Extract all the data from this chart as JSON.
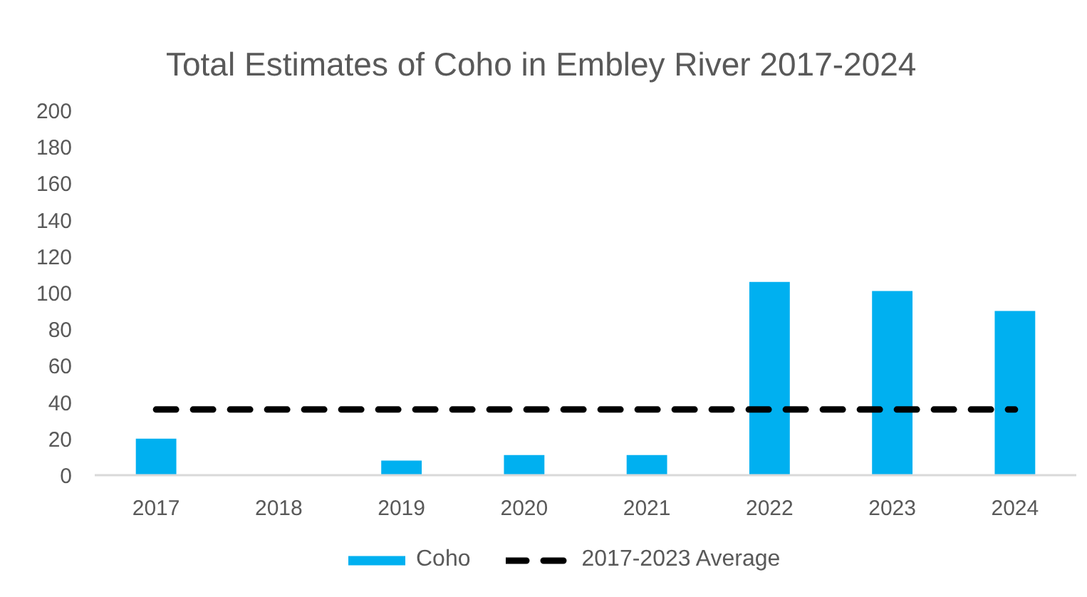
{
  "chart_data": {
    "type": "bar",
    "title": "Total Estimates of Coho in Embley River 2017-2024",
    "categories": [
      "2017",
      "2018",
      "2019",
      "2020",
      "2021",
      "2022",
      "2023",
      "2024"
    ],
    "series": [
      {
        "name": "Coho",
        "color": "#00b0f0",
        "values": [
          20,
          0,
          8,
          11,
          11,
          106,
          101,
          90
        ]
      },
      {
        "name": "2017-2023 Average",
        "type": "line",
        "color": "#000000",
        "line_style": "dashed",
        "values": [
          36,
          36,
          36,
          36,
          36,
          36,
          36,
          36
        ]
      }
    ],
    "ylim": [
      0,
      200
    ],
    "yticks": [
      0,
      20,
      40,
      60,
      80,
      100,
      120,
      140,
      160,
      180,
      200
    ],
    "grid": false,
    "legend": "bottom"
  }
}
